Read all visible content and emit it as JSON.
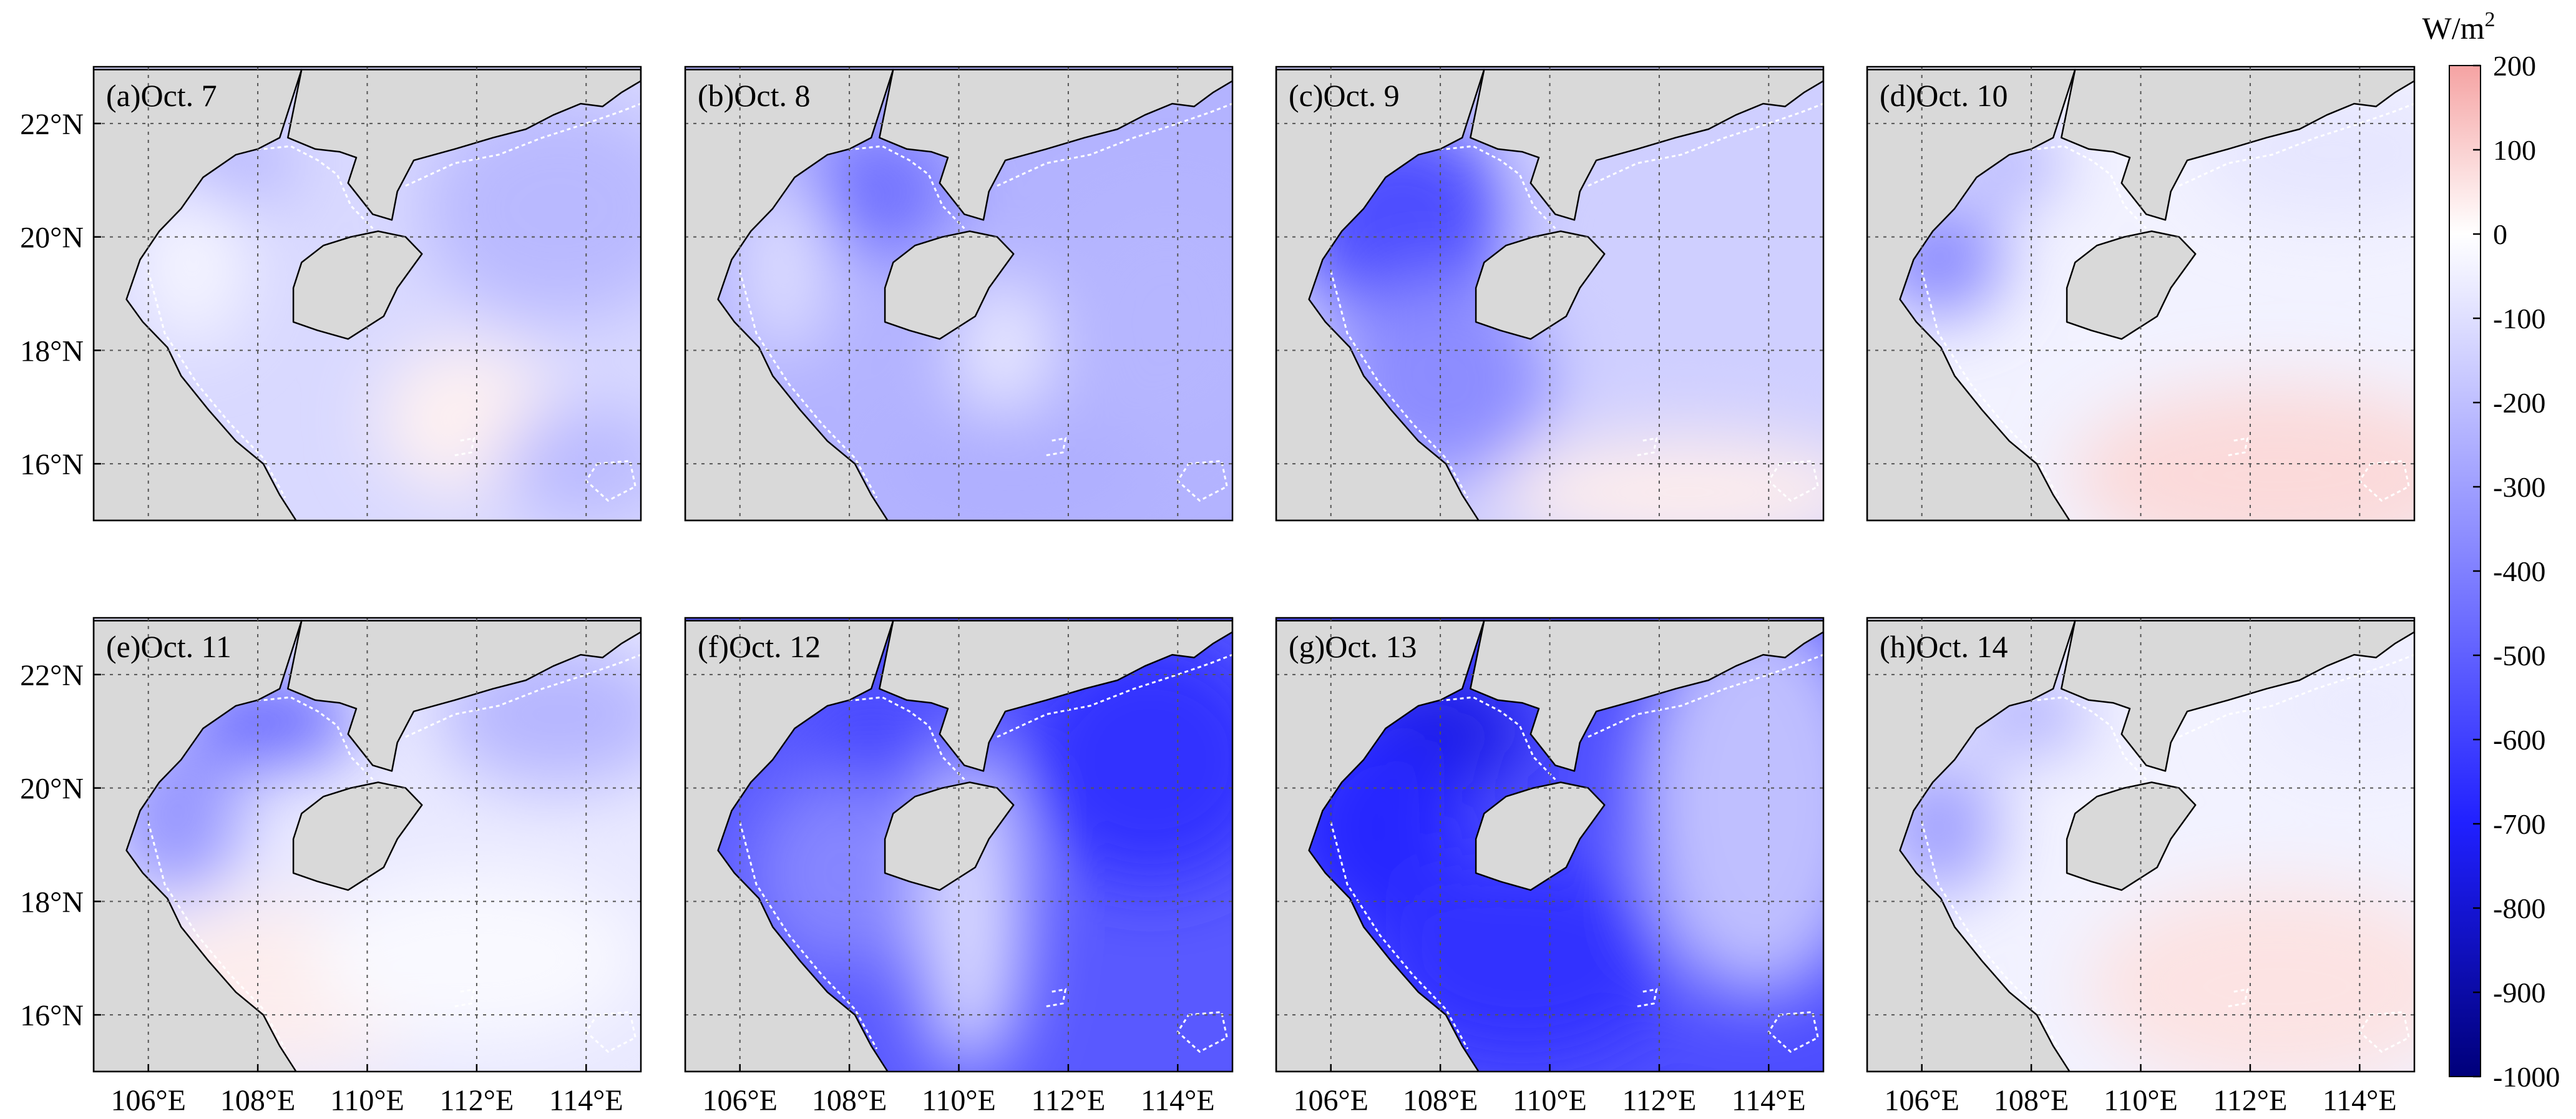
{
  "figure": {
    "panels": [
      {
        "label": "(a)Oct. 7",
        "pattern": "a"
      },
      {
        "label": "(b)Oct. 8",
        "pattern": "b"
      },
      {
        "label": "(c)Oct. 9",
        "pattern": "c"
      },
      {
        "label": "(d)Oct. 10",
        "pattern": "d"
      },
      {
        "label": "(e)Oct. 11",
        "pattern": "e"
      },
      {
        "label": "(f)Oct. 12",
        "pattern": "f"
      },
      {
        "label": "(g)Oct. 13",
        "pattern": "g"
      },
      {
        "label": "(h)Oct. 14",
        "pattern": "h"
      }
    ],
    "lat_ticks": [
      "22°N",
      "20°N",
      "18°N",
      "16°N"
    ],
    "lon_ticks": [
      "106°E",
      "108°E",
      "110°E",
      "112°E",
      "114°E"
    ],
    "lat_values": [
      22,
      20,
      18,
      16
    ],
    "lon_values": [
      106,
      108,
      110,
      112,
      114
    ],
    "lon_range": [
      105,
      115
    ],
    "lat_range": [
      15,
      23
    ],
    "colorbar": {
      "unit": "W/m",
      "unit_superscript": "2",
      "ticks": [
        "200",
        "100",
        "0",
        "-100",
        "-200",
        "-300",
        "-400",
        "-500",
        "-600",
        "-700",
        "-800",
        "-900",
        "-1000"
      ],
      "values": [
        200,
        100,
        0,
        -100,
        -200,
        -300,
        -400,
        -500,
        -600,
        -700,
        -800,
        -900,
        -1000
      ],
      "range": [
        -1000,
        200
      ],
      "colors": {
        "max": "#f5a3a3",
        "zero": "#ffffff",
        "mid": "#2020ff",
        "min": "#00007a"
      }
    },
    "land_color": "#d9d9d9"
  }
}
